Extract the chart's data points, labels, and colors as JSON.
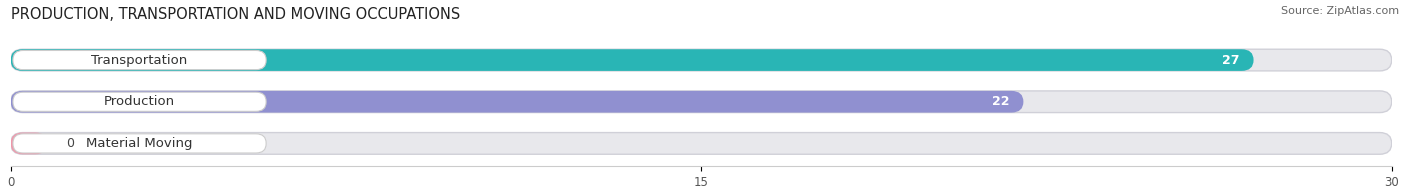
{
  "title": "PRODUCTION, TRANSPORTATION AND MOVING OCCUPATIONS",
  "source": "Source: ZipAtlas.com",
  "categories": [
    "Transportation",
    "Production",
    "Material Moving"
  ],
  "values": [
    27,
    22,
    0
  ],
  "bar_colors": [
    "#29b5b5",
    "#9090d0",
    "#f097aa"
  ],
  "bar_bg_color": "#e8e8ec",
  "xlim": [
    0,
    30
  ],
  "xticks": [
    0,
    15,
    30
  ],
  "title_fontsize": 10.5,
  "label_fontsize": 9.5,
  "value_fontsize": 9,
  "source_fontsize": 8
}
